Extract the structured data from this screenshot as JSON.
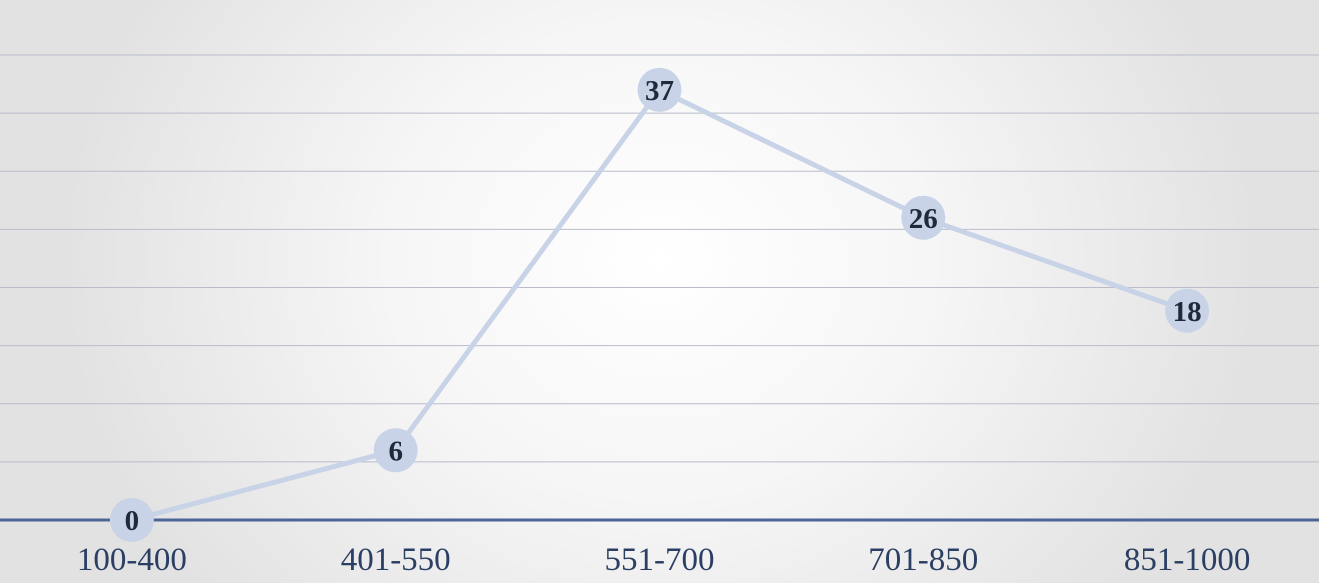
{
  "chart_data": {
    "type": "line",
    "categories": [
      "100-400",
      "401-550",
      "551-700",
      "701-850",
      "851-1000"
    ],
    "values": [
      0,
      6,
      37,
      26,
      18
    ],
    "title": "",
    "xlabel": "",
    "ylabel": "",
    "ylim": [
      0,
      40
    ],
    "grid": true,
    "data_labels": true,
    "legend": "none",
    "colors": {
      "line": "#c8d3e8",
      "marker": "#c8d3e8",
      "axis": "#4a6596",
      "gridline": "#b9bccb",
      "data_label": "#1f2a3c",
      "tick_label": "#2a3f63"
    }
  }
}
